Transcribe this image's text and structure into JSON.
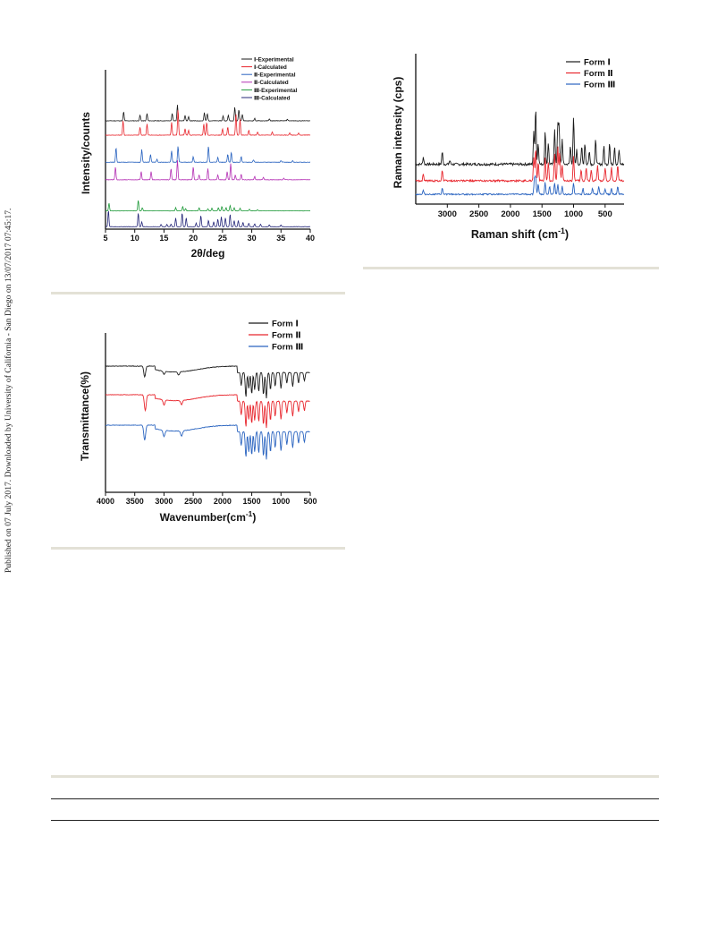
{
  "margin_note": "Published on 07 July 2017. Downloaded by University of California - San Diego on 13/07/2017 07:45:17.",
  "colors": {
    "black": "#1a1a1a",
    "red": "#e8262d",
    "blue": "#2a64c0",
    "magenta": "#b431b4",
    "green": "#1f9a3a",
    "navy": "#26287a",
    "rule": "#e3e1d6"
  },
  "chart_data": [
    {
      "id": "xrd",
      "type": "line",
      "title": "",
      "xlabel": "2θ/deg",
      "ylabel": "Intensity/counts",
      "xlim": [
        5,
        40
      ],
      "xticks": [
        5,
        10,
        15,
        20,
        25,
        30,
        35,
        40
      ],
      "xtick_labels": [
        "5",
        "10",
        "15",
        "20",
        "25",
        "30",
        "35",
        "40"
      ],
      "y_ticks_shown": false,
      "grid": false,
      "legend_position": "top-right",
      "series": [
        {
          "name": "Ⅰ-Experimental",
          "color": "#1a1a1a",
          "peaks": [
            [
              8.1,
              0.55
            ],
            [
              10.9,
              0.35
            ],
            [
              12.1,
              0.45
            ],
            [
              16.4,
              0.45
            ],
            [
              17.3,
              1.0
            ],
            [
              18.6,
              0.35
            ],
            [
              19.2,
              0.25
            ],
            [
              21.9,
              0.5
            ],
            [
              22.4,
              0.45
            ],
            [
              25.1,
              0.3
            ],
            [
              26.0,
              0.35
            ],
            [
              27.1,
              0.85
            ],
            [
              27.8,
              0.7
            ],
            [
              28.4,
              0.4
            ],
            [
              30.5,
              0.15
            ],
            [
              33.0,
              0.12
            ],
            [
              36.1,
              0.1
            ]
          ]
        },
        {
          "name": "Ⅰ-Calculated",
          "color": "#e8262d",
          "peaks": [
            [
              8.0,
              0.9
            ],
            [
              10.9,
              0.5
            ],
            [
              12.1,
              0.7
            ],
            [
              16.3,
              0.8
            ],
            [
              17.4,
              1.6
            ],
            [
              18.6,
              0.4
            ],
            [
              19.2,
              0.3
            ],
            [
              21.8,
              0.7
            ],
            [
              22.3,
              0.8
            ],
            [
              25.0,
              0.4
            ],
            [
              25.9,
              0.5
            ],
            [
              27.3,
              1.3
            ],
            [
              28.0,
              1.0
            ],
            [
              29.5,
              0.3
            ],
            [
              31.0,
              0.2
            ],
            [
              33.5,
              0.2
            ],
            [
              36.5,
              0.15
            ],
            [
              38.0,
              0.12
            ]
          ]
        },
        {
          "name": "Ⅱ-Experimental",
          "color": "#2a64c0",
          "peaks": [
            [
              6.8,
              0.9
            ],
            [
              11.2,
              0.8
            ],
            [
              12.7,
              0.5
            ],
            [
              13.8,
              0.2
            ],
            [
              16.3,
              0.7
            ],
            [
              17.4,
              1.0
            ],
            [
              20.0,
              0.35
            ],
            [
              22.6,
              1.0
            ],
            [
              24.2,
              0.3
            ],
            [
              25.9,
              0.5
            ],
            [
              26.5,
              0.6
            ],
            [
              28.2,
              0.35
            ],
            [
              30.3,
              0.15
            ],
            [
              35.0,
              0.1
            ],
            [
              37.0,
              0.1
            ]
          ]
        },
        {
          "name": "Ⅱ-Calculated",
          "color": "#b431b4",
          "peaks": [
            [
              6.7,
              0.8
            ],
            [
              11.1,
              0.5
            ],
            [
              12.8,
              0.5
            ],
            [
              16.2,
              0.7
            ],
            [
              17.3,
              1.2
            ],
            [
              20.0,
              0.8
            ],
            [
              21.0,
              0.3
            ],
            [
              22.5,
              0.7
            ],
            [
              24.2,
              0.3
            ],
            [
              25.8,
              0.5
            ],
            [
              26.4,
              1.0
            ],
            [
              27.2,
              0.3
            ],
            [
              28.2,
              0.35
            ],
            [
              30.5,
              0.2
            ],
            [
              32.0,
              0.15
            ],
            [
              35.5,
              0.1
            ]
          ]
        },
        {
          "name": "Ⅲ-Experimental",
          "color": "#1f9a3a",
          "peaks": [
            [
              5.6,
              0.7
            ],
            [
              10.6,
              1.0
            ],
            [
              11.3,
              0.3
            ],
            [
              17.0,
              0.3
            ],
            [
              18.2,
              0.4
            ],
            [
              18.7,
              0.2
            ],
            [
              21.0,
              0.3
            ],
            [
              22.5,
              0.2
            ],
            [
              23.2,
              0.25
            ],
            [
              24.3,
              0.3
            ],
            [
              24.9,
              0.4
            ],
            [
              25.6,
              0.3
            ],
            [
              26.3,
              0.5
            ],
            [
              27.0,
              0.3
            ],
            [
              28.0,
              0.25
            ],
            [
              29.6,
              0.15
            ],
            [
              31.0,
              0.1
            ]
          ]
        },
        {
          "name": "Ⅲ-Calculated",
          "color": "#26287a",
          "peaks": [
            [
              5.5,
              1.3
            ],
            [
              10.6,
              1.1
            ],
            [
              11.2,
              0.4
            ],
            [
              14.5,
              0.2
            ],
            [
              15.5,
              0.2
            ],
            [
              16.2,
              0.2
            ],
            [
              17.0,
              0.7
            ],
            [
              18.1,
              1.1
            ],
            [
              18.8,
              0.7
            ],
            [
              20.5,
              0.3
            ],
            [
              21.3,
              0.9
            ],
            [
              22.6,
              0.5
            ],
            [
              23.5,
              0.4
            ],
            [
              24.2,
              0.6
            ],
            [
              24.8,
              0.8
            ],
            [
              25.5,
              0.7
            ],
            [
              26.3,
              1.0
            ],
            [
              27.0,
              0.5
            ],
            [
              27.7,
              0.5
            ],
            [
              28.5,
              0.35
            ],
            [
              29.5,
              0.3
            ],
            [
              30.5,
              0.25
            ],
            [
              31.5,
              0.2
            ],
            [
              33.0,
              0.15
            ],
            [
              35.0,
              0.15
            ]
          ]
        }
      ]
    },
    {
      "id": "raman",
      "type": "line",
      "title": "",
      "xlabel": "Raman shift  (cm",
      "xlabel_sup": "-1",
      "xlabel_end": ")",
      "ylabel": "Raman intensity (cps)",
      "xlim": [
        3500,
        200
      ],
      "xticks": [
        3000,
        2500,
        2000,
        1500,
        1000,
        500
      ],
      "xtick_labels": [
        "3000",
        "2500",
        "2000",
        "1500",
        "1000",
        "500"
      ],
      "y_ticks_shown": false,
      "grid": false,
      "legend_position": "top-right",
      "series": [
        {
          "name": "Form Ⅰ",
          "color": "#1a1a1a",
          "peaks": [
            [
              3380,
              0.2
            ],
            [
              3080,
              0.35
            ],
            [
              2960,
              0.1
            ],
            [
              1630,
              0.9
            ],
            [
              1600,
              1.6
            ],
            [
              1560,
              0.6
            ],
            [
              1450,
              0.9
            ],
            [
              1400,
              0.6
            ],
            [
              1300,
              1.0
            ],
            [
              1250,
              1.1
            ],
            [
              1230,
              1.1
            ],
            [
              1180,
              0.7
            ],
            [
              1050,
              0.5
            ],
            [
              1000,
              1.3
            ],
            [
              950,
              0.4
            ],
            [
              870,
              0.5
            ],
            [
              820,
              0.6
            ],
            [
              750,
              0.4
            ],
            [
              650,
              0.7
            ],
            [
              520,
              0.5
            ],
            [
              430,
              0.6
            ],
            [
              350,
              0.5
            ],
            [
              280,
              0.4
            ]
          ]
        },
        {
          "name": "Form Ⅱ",
          "color": "#e8262d",
          "peaks": [
            [
              3380,
              0.25
            ],
            [
              3080,
              0.4
            ],
            [
              1630,
              0.9
            ],
            [
              1600,
              1.2
            ],
            [
              1560,
              0.7
            ],
            [
              1450,
              0.9
            ],
            [
              1400,
              0.7
            ],
            [
              1300,
              1.0
            ],
            [
              1250,
              1.3
            ],
            [
              1220,
              1.1
            ],
            [
              1180,
              0.6
            ],
            [
              1000,
              0.9
            ],
            [
              880,
              0.4
            ],
            [
              800,
              0.5
            ],
            [
              720,
              0.4
            ],
            [
              620,
              0.6
            ],
            [
              500,
              0.5
            ],
            [
              400,
              0.5
            ],
            [
              300,
              0.6
            ]
          ]
        },
        {
          "name": "Form Ⅲ",
          "color": "#2a64c0",
          "peaks": [
            [
              3380,
              0.2
            ],
            [
              3080,
              0.3
            ],
            [
              1620,
              0.8
            ],
            [
              1600,
              0.9
            ],
            [
              1560,
              0.5
            ],
            [
              1450,
              0.6
            ],
            [
              1380,
              0.4
            ],
            [
              1300,
              0.6
            ],
            [
              1250,
              0.5
            ],
            [
              1180,
              0.4
            ],
            [
              1000,
              0.6
            ],
            [
              850,
              0.3
            ],
            [
              700,
              0.3
            ],
            [
              600,
              0.4
            ],
            [
              500,
              0.3
            ],
            [
              400,
              0.3
            ],
            [
              300,
              0.4
            ]
          ]
        }
      ]
    },
    {
      "id": "ftir",
      "type": "line",
      "title": "",
      "xlabel": "Wavenumber(cm",
      "xlabel_sup": "-1",
      "xlabel_end": ")",
      "ylabel": "Transmittance(%)",
      "xlim": [
        4000,
        500
      ],
      "xticks": [
        4000,
        3500,
        3000,
        2500,
        2000,
        1500,
        1000,
        500
      ],
      "xtick_labels": [
        "4000",
        "3500",
        "3000",
        "2500",
        "2000",
        "1500",
        "1000",
        "500"
      ],
      "y_ticks_shown": false,
      "grid": false,
      "legend_position": "top-right",
      "series": [
        {
          "name": "Form Ⅰ",
          "color": "#1a1a1a",
          "dips": [
            [
              3330,
              1.0
            ],
            [
              3000,
              0.3
            ],
            [
              2750,
              0.3
            ],
            [
              1680,
              1.2
            ],
            [
              1600,
              2.3
            ],
            [
              1550,
              1.5
            ],
            [
              1500,
              2.0
            ],
            [
              1450,
              1.6
            ],
            [
              1380,
              1.8
            ],
            [
              1300,
              2.1
            ],
            [
              1250,
              2.4
            ],
            [
              1180,
              1.6
            ],
            [
              1100,
              1.3
            ],
            [
              1000,
              1.5
            ],
            [
              900,
              1.0
            ],
            [
              800,
              1.3
            ],
            [
              700,
              1.0
            ],
            [
              600,
              0.8
            ]
          ]
        },
        {
          "name": "Form Ⅱ",
          "color": "#e8262d",
          "dips": [
            [
              3320,
              1.5
            ],
            [
              3000,
              0.5
            ],
            [
              2700,
              0.4
            ],
            [
              1680,
              1.3
            ],
            [
              1600,
              2.4
            ],
            [
              1550,
              1.7
            ],
            [
              1500,
              2.1
            ],
            [
              1450,
              1.8
            ],
            [
              1380,
              1.9
            ],
            [
              1300,
              2.2
            ],
            [
              1250,
              2.5
            ],
            [
              1180,
              1.8
            ],
            [
              1100,
              1.4
            ],
            [
              1000,
              1.7
            ],
            [
              900,
              1.1
            ],
            [
              800,
              1.4
            ],
            [
              700,
              1.0
            ],
            [
              600,
              0.9
            ]
          ]
        },
        {
          "name": "Form Ⅲ",
          "color": "#2a64c0",
          "dips": [
            [
              3330,
              1.4
            ],
            [
              3000,
              0.6
            ],
            [
              2700,
              0.5
            ],
            [
              1680,
              1.3
            ],
            [
              1600,
              2.4
            ],
            [
              1550,
              1.9
            ],
            [
              1500,
              2.2
            ],
            [
              1450,
              1.9
            ],
            [
              1380,
              2.0
            ],
            [
              1300,
              2.3
            ],
            [
              1250,
              2.6
            ],
            [
              1180,
              1.9
            ],
            [
              1100,
              1.5
            ],
            [
              1000,
              1.8
            ],
            [
              900,
              1.2
            ],
            [
              800,
              1.5
            ],
            [
              700,
              1.1
            ],
            [
              600,
              1.0
            ]
          ]
        }
      ]
    }
  ]
}
